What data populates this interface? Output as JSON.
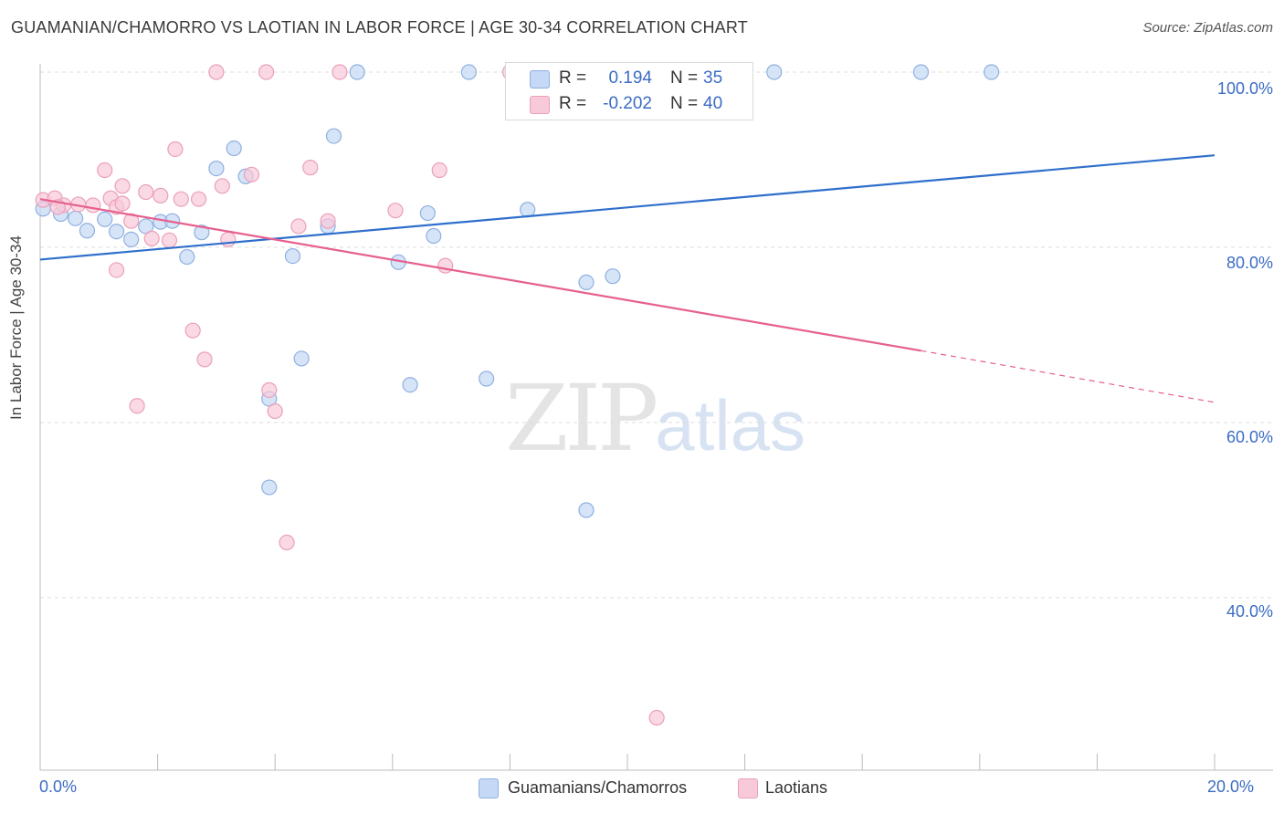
{
  "title": "GUAMANIAN/CHAMORRO VS LAOTIAN IN LABOR FORCE | AGE 30-34 CORRELATION CHART",
  "source": "Source: ZipAtlas.com",
  "watermark": {
    "zip": "ZIP",
    "atlas": "atlas"
  },
  "legend": {
    "rows": [
      {
        "r_label": "R =",
        "r_value": "0.194",
        "n_label": "N =",
        "n_value": "35"
      },
      {
        "r_label": "R =",
        "r_value": "-0.202",
        "n_label": "N =",
        "n_value": "40"
      }
    ]
  },
  "bottom_legend": {
    "series1": "Guamanians/Chamorros",
    "series2": "Laotians"
  },
  "colors": {
    "blue": "#3b6cc4",
    "blue_fill": "#c5d8f5",
    "blue_line": "#2f6fcc",
    "pink": "#e6608f",
    "pink_fill": "#f8c9d8",
    "grid": "#dddddd"
  },
  "chart_data": {
    "type": "scatter",
    "title": "GUAMANIAN/CHAMORRO VS LAOTIAN IN LABOR FORCE | AGE 30-34 CORRELATION CHART",
    "xlabel": "",
    "ylabel": "In Labor Force | Age 30-34",
    "xlim": [
      0,
      20
    ],
    "ylim": [
      20,
      102
    ],
    "x_ticks": [
      "0.0%",
      "20.0%"
    ],
    "y_ticks": [
      {
        "value": 100,
        "label": "100.0%"
      },
      {
        "value": 80,
        "label": "80.0%"
      },
      {
        "value": 60,
        "label": "60.0%"
      },
      {
        "value": 40,
        "label": "40.0%"
      }
    ],
    "series": [
      {
        "name": "Guamanians/Chamorros",
        "color": "#3b6cc4",
        "points": [
          {
            "x": 0.05,
            "y": 84.4
          },
          {
            "x": 0.35,
            "y": 83.8
          },
          {
            "x": 0.6,
            "y": 83.3
          },
          {
            "x": 0.8,
            "y": 81.9
          },
          {
            "x": 1.1,
            "y": 83.2
          },
          {
            "x": 1.3,
            "y": 81.8
          },
          {
            "x": 1.55,
            "y": 80.9
          },
          {
            "x": 1.8,
            "y": 82.4
          },
          {
            "x": 2.05,
            "y": 82.9
          },
          {
            "x": 2.25,
            "y": 83.0
          },
          {
            "x": 2.5,
            "y": 78.9
          },
          {
            "x": 2.75,
            "y": 81.7
          },
          {
            "x": 3.0,
            "y": 89.0
          },
          {
            "x": 3.3,
            "y": 91.3
          },
          {
            "x": 3.5,
            "y": 88.1
          },
          {
            "x": 3.9,
            "y": 62.7
          },
          {
            "x": 3.9,
            "y": 52.6
          },
          {
            "x": 4.3,
            "y": 79.0
          },
          {
            "x": 4.45,
            "y": 67.3
          },
          {
            "x": 4.9,
            "y": 82.4
          },
          {
            "x": 5.0,
            "y": 92.7
          },
          {
            "x": 5.4,
            "y": 100.0
          },
          {
            "x": 6.1,
            "y": 78.3
          },
          {
            "x": 6.3,
            "y": 64.3
          },
          {
            "x": 6.6,
            "y": 83.9
          },
          {
            "x": 6.7,
            "y": 81.3
          },
          {
            "x": 7.3,
            "y": 100.0
          },
          {
            "x": 7.6,
            "y": 65.0
          },
          {
            "x": 8.3,
            "y": 84.3
          },
          {
            "x": 9.3,
            "y": 76.0
          },
          {
            "x": 9.3,
            "y": 50.0
          },
          {
            "x": 9.75,
            "y": 76.7
          },
          {
            "x": 12.5,
            "y": 100.0
          },
          {
            "x": 15.0,
            "y": 100.0
          },
          {
            "x": 16.2,
            "y": 100.0
          }
        ],
        "trend": {
          "x": [
            0,
            20
          ],
          "y": [
            78.6,
            90.5
          ]
        }
      },
      {
        "name": "Laotians",
        "color": "#e6608f",
        "points": [
          {
            "x": 0.05,
            "y": 85.4
          },
          {
            "x": 0.25,
            "y": 85.6
          },
          {
            "x": 0.4,
            "y": 84.8
          },
          {
            "x": 0.65,
            "y": 84.9
          },
          {
            "x": 0.9,
            "y": 84.8
          },
          {
            "x": 1.1,
            "y": 88.8
          },
          {
            "x": 1.2,
            "y": 85.6
          },
          {
            "x": 1.3,
            "y": 84.6
          },
          {
            "x": 1.3,
            "y": 77.4
          },
          {
            "x": 1.4,
            "y": 85.0
          },
          {
            "x": 1.4,
            "y": 87.0
          },
          {
            "x": 1.55,
            "y": 83.0
          },
          {
            "x": 1.65,
            "y": 61.9
          },
          {
            "x": 1.8,
            "y": 86.3
          },
          {
            "x": 1.9,
            "y": 81.0
          },
          {
            "x": 2.05,
            "y": 85.9
          },
          {
            "x": 2.2,
            "y": 80.8
          },
          {
            "x": 2.3,
            "y": 91.2
          },
          {
            "x": 2.4,
            "y": 85.5
          },
          {
            "x": 2.6,
            "y": 70.5
          },
          {
            "x": 2.7,
            "y": 85.5
          },
          {
            "x": 2.8,
            "y": 67.2
          },
          {
            "x": 3.0,
            "y": 100.0
          },
          {
            "x": 3.1,
            "y": 87.0
          },
          {
            "x": 3.2,
            "y": 80.9
          },
          {
            "x": 3.6,
            "y": 88.3
          },
          {
            "x": 3.85,
            "y": 100.0
          },
          {
            "x": 3.9,
            "y": 63.7
          },
          {
            "x": 4.0,
            "y": 61.3
          },
          {
            "x": 4.2,
            "y": 46.3
          },
          {
            "x": 4.4,
            "y": 82.4
          },
          {
            "x": 4.6,
            "y": 89.1
          },
          {
            "x": 4.9,
            "y": 83.0
          },
          {
            "x": 5.1,
            "y": 100.0
          },
          {
            "x": 6.05,
            "y": 84.2
          },
          {
            "x": 6.8,
            "y": 88.8
          },
          {
            "x": 6.9,
            "y": 77.9
          },
          {
            "x": 8.0,
            "y": 100.0
          },
          {
            "x": 10.5,
            "y": 26.3
          },
          {
            "x": 0.3,
            "y": 84.6
          }
        ],
        "trend": {
          "x": [
            0,
            15
          ],
          "y": [
            85.5,
            68.2
          ]
        },
        "trend_extension": {
          "x": [
            15,
            20
          ],
          "y": [
            68.2,
            62.3
          ]
        }
      }
    ]
  }
}
